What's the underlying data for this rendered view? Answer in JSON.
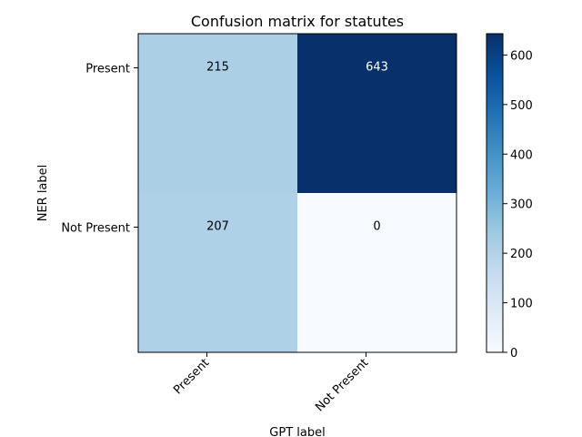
{
  "chart_data": {
    "type": "heatmap",
    "title": "Confusion matrix for statutes",
    "xlabel": "GPT label",
    "ylabel": "NER label",
    "x_categories": [
      "Present",
      "Not Present"
    ],
    "y_categories": [
      "Present",
      "Not Present"
    ],
    "values": [
      [
        215,
        643
      ],
      [
        207,
        0
      ]
    ],
    "colormap": "Blues",
    "colorbar": {
      "min": 0,
      "max": 643,
      "ticks": [
        "0",
        "100",
        "200",
        "300",
        "400",
        "500",
        "600"
      ]
    }
  }
}
